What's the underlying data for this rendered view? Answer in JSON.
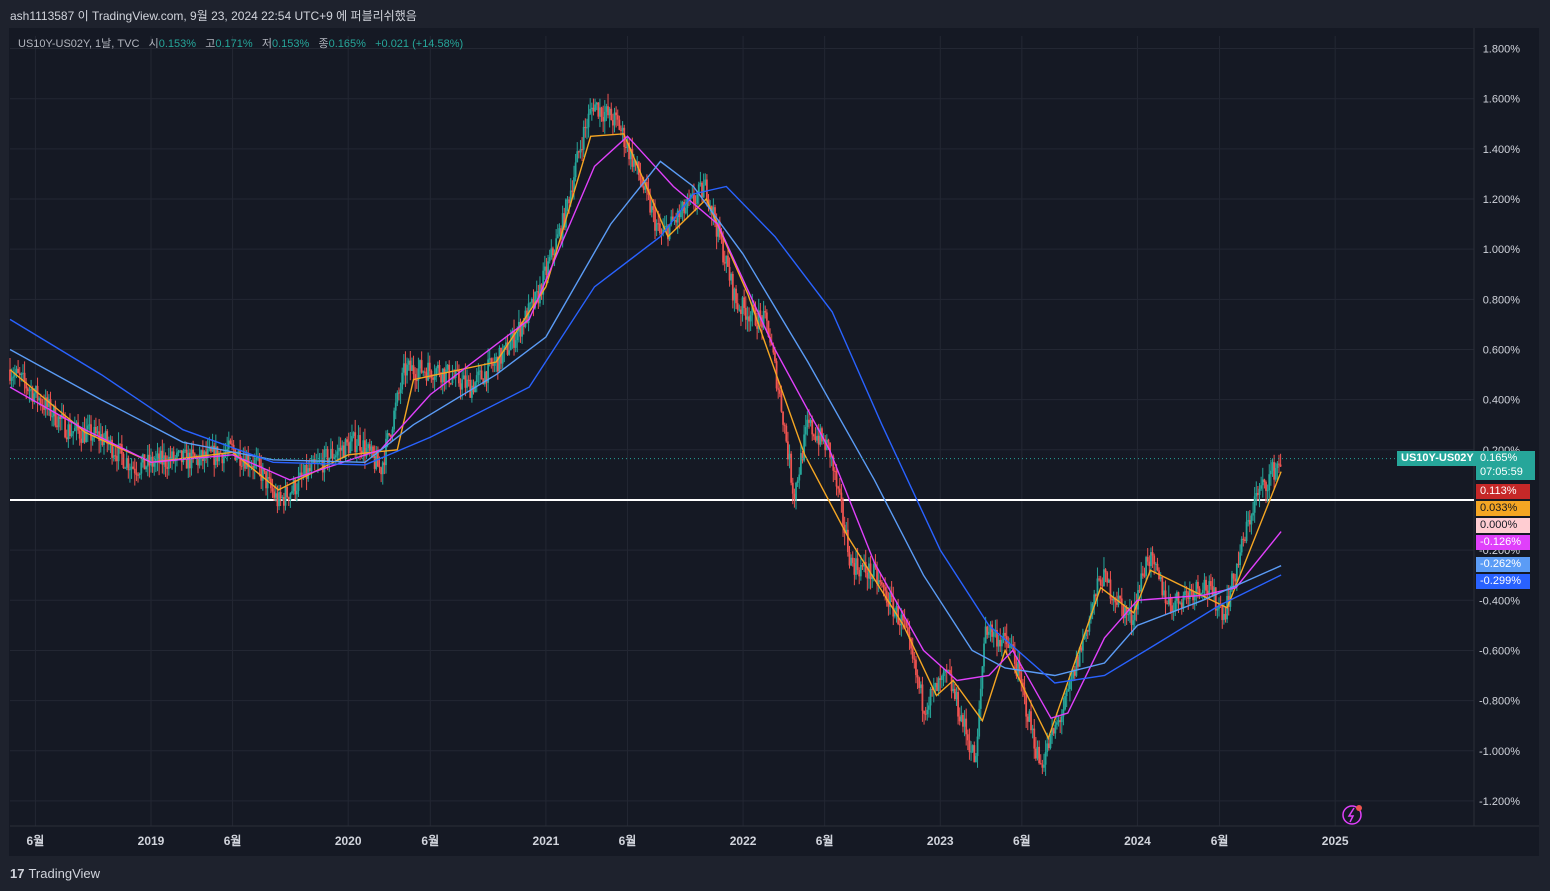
{
  "header": {
    "published_text": "ash1113587 이 TradingView.com, 9월 23, 2024 22:54 UTC+9 에 퍼블리쉬했음"
  },
  "legend": {
    "symbol": "US10Y-US02Y, 1날, TVC",
    "open_label": "시",
    "open_value": "0.153%",
    "high_label": "고",
    "high_value": "0.171%",
    "low_label": "저",
    "low_value": "0.153%",
    "close_label": "종",
    "close_value": "0.165%",
    "change": "+0.021 (+14.58%)"
  },
  "footer": {
    "brand": "TradingView"
  },
  "colors": {
    "up": "#26a69a",
    "down": "#ef5350",
    "ma1": "#f5a623",
    "ma2": "#e040fb",
    "ma3": "#5b9cf6",
    "ma4": "#2962ff",
    "hline": "#ffffff"
  },
  "chart_data": {
    "type": "candlestick",
    "symbol": "US10Y-US02Y",
    "ylim": [
      -1.3,
      1.85
    ],
    "y_ticks": [
      "1.800%",
      "1.600%",
      "1.400%",
      "1.200%",
      "1.000%",
      "0.800%",
      "0.600%",
      "0.400%",
      "0.200%",
      "-0.200%",
      "-0.400%",
      "-0.600%",
      "-0.800%",
      "-1.000%",
      "-1.200%"
    ],
    "x_labels": [
      {
        "label": "6월",
        "date": "2018-06-01"
      },
      {
        "label": "2019",
        "date": "2019-01-01"
      },
      {
        "label": "6월",
        "date": "2019-06-01"
      },
      {
        "label": "2020",
        "date": "2020-01-01"
      },
      {
        "label": "6월",
        "date": "2020-06-01"
      },
      {
        "label": "2021",
        "date": "2021-01-01"
      },
      {
        "label": "6월",
        "date": "2021-06-01"
      },
      {
        "label": "2022",
        "date": "2022-01-01"
      },
      {
        "label": "6월",
        "date": "2022-06-01"
      },
      {
        "label": "2023",
        "date": "2023-01-01"
      },
      {
        "label": "6월",
        "date": "2023-06-01"
      },
      {
        "label": "2024",
        "date": "2024-01-01"
      },
      {
        "label": "6월",
        "date": "2024-06-01"
      },
      {
        "label": "2025",
        "date": "2025-01-01"
      }
    ],
    "xlim": [
      "2018-04-15",
      "2025-09-15"
    ],
    "price_path": [
      [
        "2018-04-15",
        0.52
      ],
      [
        "2018-06-01",
        0.42
      ],
      [
        "2018-08-01",
        0.28
      ],
      [
        "2018-10-01",
        0.25
      ],
      [
        "2018-12-01",
        0.13
      ],
      [
        "2019-02-01",
        0.16
      ],
      [
        "2019-04-01",
        0.16
      ],
      [
        "2019-06-01",
        0.2
      ],
      [
        "2019-07-15",
        0.14
      ],
      [
        "2019-08-25",
        -0.01
      ],
      [
        "2019-10-15",
        0.1
      ],
      [
        "2019-12-01",
        0.18
      ],
      [
        "2020-01-20",
        0.24
      ],
      [
        "2020-03-01",
        0.12
      ],
      [
        "2020-04-15",
        0.52
      ],
      [
        "2020-06-15",
        0.52
      ],
      [
        "2020-08-15",
        0.45
      ],
      [
        "2020-10-15",
        0.58
      ],
      [
        "2020-12-15",
        0.8
      ],
      [
        "2021-02-01",
        1.1
      ],
      [
        "2021-03-10",
        1.45
      ],
      [
        "2021-03-30",
        1.58
      ],
      [
        "2021-05-15",
        1.5
      ],
      [
        "2021-06-25",
        1.28
      ],
      [
        "2021-08-01",
        1.05
      ],
      [
        "2021-10-25",
        1.25
      ],
      [
        "2021-12-20",
        0.78
      ],
      [
        "2022-02-15",
        0.7
      ],
      [
        "2022-03-15",
        0.35
      ],
      [
        "2022-04-05",
        0.02
      ],
      [
        "2022-05-01",
        0.3
      ],
      [
        "2022-06-10",
        0.2
      ],
      [
        "2022-07-20",
        -0.25
      ],
      [
        "2022-09-01",
        -0.3
      ],
      [
        "2022-10-25",
        -0.5
      ],
      [
        "2022-12-01",
        -0.82
      ],
      [
        "2023-01-15",
        -0.7
      ],
      [
        "2023-03-08",
        -1.05
      ],
      [
        "2023-03-25",
        -0.5
      ],
      [
        "2023-05-15",
        -0.6
      ],
      [
        "2023-07-05",
        -1.06
      ],
      [
        "2023-08-20",
        -0.82
      ],
      [
        "2023-10-26",
        -0.3
      ],
      [
        "2023-12-20",
        -0.48
      ],
      [
        "2024-01-20",
        -0.22
      ],
      [
        "2024-03-01",
        -0.42
      ],
      [
        "2024-05-01",
        -0.33
      ],
      [
        "2024-06-10",
        -0.45
      ],
      [
        "2024-08-05",
        0.0
      ],
      [
        "2024-09-23",
        0.165
      ]
    ],
    "moving_averages": [
      {
        "value": "0.113%",
        "color": "#f5a623",
        "path": [
          [
            "2018-04-15",
            0.52
          ],
          [
            "2018-09-01",
            0.27
          ],
          [
            "2019-01-01",
            0.15
          ],
          [
            "2019-06-01",
            0.19
          ],
          [
            "2019-08-25",
            0.04
          ],
          [
            "2020-01-01",
            0.18
          ],
          [
            "2020-04-01",
            0.2
          ],
          [
            "2020-05-01",
            0.48
          ],
          [
            "2020-10-01",
            0.55
          ],
          [
            "2021-01-01",
            0.85
          ],
          [
            "2021-03-25",
            1.45
          ],
          [
            "2021-05-25",
            1.46
          ],
          [
            "2021-08-15",
            1.05
          ],
          [
            "2021-10-25",
            1.2
          ],
          [
            "2022-01-10",
            0.82
          ],
          [
            "2022-04-25",
            0.18
          ],
          [
            "2022-07-15",
            -0.15
          ],
          [
            "2022-10-25",
            -0.5
          ],
          [
            "2022-12-25",
            -0.78
          ],
          [
            "2023-01-25",
            -0.72
          ],
          [
            "2023-03-20",
            -0.88
          ],
          [
            "2023-05-01",
            -0.6
          ],
          [
            "2023-07-20",
            -0.95
          ],
          [
            "2023-10-25",
            -0.35
          ],
          [
            "2023-12-25",
            -0.45
          ],
          [
            "2024-01-25",
            -0.28
          ],
          [
            "2024-06-15",
            -0.43
          ],
          [
            "2024-09-23",
            0.113
          ]
        ]
      },
      {
        "value": "-0.126%",
        "color": "#e040fb",
        "path": [
          [
            "2018-04-15",
            0.45
          ],
          [
            "2018-09-01",
            0.28
          ],
          [
            "2019-01-01",
            0.15
          ],
          [
            "2019-06-01",
            0.18
          ],
          [
            "2019-09-15",
            0.08
          ],
          [
            "2020-03-01",
            0.2
          ],
          [
            "2020-06-01",
            0.42
          ],
          [
            "2020-12-01",
            0.72
          ],
          [
            "2021-04-01",
            1.33
          ],
          [
            "2021-06-01",
            1.45
          ],
          [
            "2021-08-25",
            1.25
          ],
          [
            "2021-11-15",
            1.1
          ],
          [
            "2022-03-01",
            0.6
          ],
          [
            "2022-06-10",
            0.2
          ],
          [
            "2022-09-01",
            -0.25
          ],
          [
            "2022-12-01",
            -0.6
          ],
          [
            "2023-02-01",
            -0.72
          ],
          [
            "2023-04-01",
            -0.7
          ],
          [
            "2023-05-15",
            -0.6
          ],
          [
            "2023-07-25",
            -0.87
          ],
          [
            "2023-08-25",
            -0.85
          ],
          [
            "2023-11-01",
            -0.55
          ],
          [
            "2024-01-01",
            -0.4
          ],
          [
            "2024-05-01",
            -0.38
          ],
          [
            "2024-07-01",
            -0.35
          ],
          [
            "2024-09-23",
            -0.126
          ]
        ]
      },
      {
        "value": "-0.262%",
        "color": "#5b9cf6",
        "path": [
          [
            "2018-04-15",
            0.6
          ],
          [
            "2018-10-01",
            0.4
          ],
          [
            "2019-03-01",
            0.23
          ],
          [
            "2019-08-15",
            0.16
          ],
          [
            "2020-02-01",
            0.15
          ],
          [
            "2020-05-01",
            0.3
          ],
          [
            "2020-10-01",
            0.5
          ],
          [
            "2021-01-01",
            0.65
          ],
          [
            "2021-05-01",
            1.1
          ],
          [
            "2021-08-01",
            1.35
          ],
          [
            "2021-10-01",
            1.25
          ],
          [
            "2022-01-01",
            0.98
          ],
          [
            "2022-05-01",
            0.55
          ],
          [
            "2022-09-01",
            0.08
          ],
          [
            "2022-12-01",
            -0.3
          ],
          [
            "2023-03-01",
            -0.6
          ],
          [
            "2023-05-01",
            -0.67
          ],
          [
            "2023-08-01",
            -0.7
          ],
          [
            "2023-11-01",
            -0.65
          ],
          [
            "2024-01-01",
            -0.5
          ],
          [
            "2024-05-01",
            -0.4
          ],
          [
            "2024-09-23",
            -0.262
          ]
        ]
      },
      {
        "value": "-0.299%",
        "color": "#2962ff",
        "path": [
          [
            "2018-04-15",
            0.72
          ],
          [
            "2018-10-01",
            0.5
          ],
          [
            "2019-03-01",
            0.28
          ],
          [
            "2019-08-15",
            0.15
          ],
          [
            "2020-02-01",
            0.14
          ],
          [
            "2020-06-01",
            0.25
          ],
          [
            "2020-12-01",
            0.45
          ],
          [
            "2021-04-01",
            0.85
          ],
          [
            "2021-08-01",
            1.05
          ],
          [
            "2021-10-01",
            1.22
          ],
          [
            "2021-12-01",
            1.25
          ],
          [
            "2022-03-01",
            1.05
          ],
          [
            "2022-06-15",
            0.75
          ],
          [
            "2022-09-15",
            0.3
          ],
          [
            "2023-01-01",
            -0.2
          ],
          [
            "2023-04-01",
            -0.5
          ],
          [
            "2023-08-01",
            -0.73
          ],
          [
            "2023-11-01",
            -0.7
          ],
          [
            "2024-02-01",
            -0.58
          ],
          [
            "2024-06-01",
            -0.42
          ],
          [
            "2024-09-23",
            -0.299
          ]
        ]
      }
    ],
    "horizontal_line": 0.0,
    "last_price": {
      "label": "US10Y-US02Y",
      "value": "0.165%",
      "countdown": "07:05:59"
    },
    "baseline_tag": "0.000%"
  }
}
